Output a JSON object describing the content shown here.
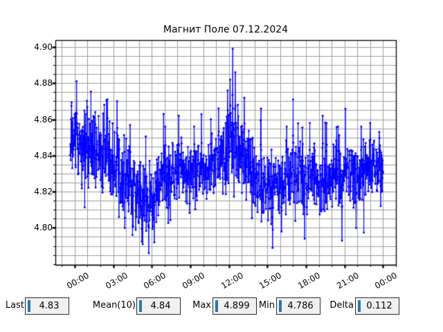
{
  "title": "Магнит Поле 07.12.2024",
  "chart_data": {
    "type": "line",
    "title": "Магнит Поле 07.12.2024",
    "series_name": "magnetic-field",
    "series_color": "#0000ff",
    "marker": "circle",
    "grid": true,
    "grid_color": "#9b9b9b",
    "x_axis": {
      "label": "",
      "tick_labels": [
        "00:00",
        "03:00",
        "06:00",
        "09:00",
        "12:00",
        "15:00",
        "18:00",
        "21:00",
        "00:00"
      ],
      "tick_hours": [
        0,
        3,
        6,
        9,
        12,
        15,
        18,
        21,
        24
      ],
      "minor_step_hours": 1,
      "range_hours": [
        -1.5,
        25.0
      ]
    },
    "y_axis": {
      "label": "",
      "tick_labels": [
        "4.90",
        "4.88",
        "4.86",
        "4.84",
        "4.82",
        "4.80"
      ],
      "tick_values": [
        4.9,
        4.88,
        4.86,
        4.84,
        4.82,
        4.8
      ],
      "minor_step": 0.005,
      "range": [
        4.7795,
        4.9038
      ]
    },
    "stats": {
      "last": 4.83,
      "mean10": 4.84,
      "max": 4.899,
      "min": 4.786,
      "delta": 0.112
    },
    "generator": {
      "seed": 1234,
      "start_hour": -0.35,
      "end_hour": 24.0,
      "step_minutes": 1,
      "last_value": 4.831,
      "tail_chance": 0.07,
      "tail_gain": 2.0,
      "clamp": [
        4.788,
        4.89
      ],
      "baseline": [
        [
          -0.4,
          4.846
        ],
        [
          0,
          4.846
        ],
        [
          1,
          4.842
        ],
        [
          2,
          4.841
        ],
        [
          3,
          4.838
        ],
        [
          4,
          4.827
        ],
        [
          4.5,
          4.822
        ],
        [
          5,
          4.818
        ],
        [
          6,
          4.817
        ],
        [
          6.5,
          4.822
        ],
        [
          7,
          4.827
        ],
        [
          8,
          4.831
        ],
        [
          9,
          4.828
        ],
        [
          10,
          4.83
        ],
        [
          11,
          4.835
        ],
        [
          11.8,
          4.84
        ],
        [
          12.3,
          4.848
        ],
        [
          13,
          4.839
        ],
        [
          14,
          4.83
        ],
        [
          15,
          4.822
        ],
        [
          16,
          4.824
        ],
        [
          17,
          4.831
        ],
        [
          18,
          4.829
        ],
        [
          19,
          4.826
        ],
        [
          20,
          4.827
        ],
        [
          21,
          4.831
        ],
        [
          22,
          4.829
        ],
        [
          23,
          4.833
        ],
        [
          24,
          4.835
        ]
      ],
      "noise_amp": [
        [
          -0.4,
          0.013
        ],
        [
          2,
          0.013
        ],
        [
          4,
          0.012
        ],
        [
          5,
          0.012
        ],
        [
          6,
          0.011
        ],
        [
          7,
          0.011
        ],
        [
          9,
          0.01
        ],
        [
          11,
          0.011
        ],
        [
          12,
          0.013
        ],
        [
          13,
          0.012
        ],
        [
          15,
          0.011
        ],
        [
          17,
          0.011
        ],
        [
          19,
          0.011
        ],
        [
          21,
          0.011
        ],
        [
          23,
          0.01
        ],
        [
          24,
          0.009
        ]
      ],
      "spikes": [
        [
          0.15,
          4.881
        ],
        [
          1.6,
          4.864
        ],
        [
          2.3,
          4.868
        ],
        [
          2.55,
          4.871
        ],
        [
          3.3,
          4.87
        ],
        [
          3.9,
          4.8
        ],
        [
          4.5,
          4.796
        ],
        [
          4.75,
          4.799
        ],
        [
          5.3,
          4.791
        ],
        [
          5.77,
          4.786
        ],
        [
          6.2,
          4.792
        ],
        [
          7.05,
          4.856
        ],
        [
          8.1,
          4.862
        ],
        [
          9.3,
          4.856
        ],
        [
          10.6,
          4.86
        ],
        [
          11.2,
          4.866
        ],
        [
          11.9,
          4.876
        ],
        [
          12.1,
          4.882
        ],
        [
          12.3,
          4.899
        ],
        [
          12.5,
          4.886
        ],
        [
          12.7,
          4.868
        ],
        [
          13.2,
          4.872
        ],
        [
          14.5,
          4.866
        ],
        [
          15.4,
          4.789
        ],
        [
          16.1,
          4.798
        ],
        [
          16.5,
          4.856
        ],
        [
          17.0,
          4.871
        ],
        [
          17.9,
          4.794
        ],
        [
          18.3,
          4.858
        ],
        [
          19.3,
          4.862
        ],
        [
          19.6,
          4.858
        ],
        [
          20.5,
          4.856
        ],
        [
          20.8,
          4.793
        ],
        [
          21.9,
          4.8
        ],
        [
          22.3,
          4.856
        ],
        [
          23.0,
          4.858
        ],
        [
          23.7,
          4.853
        ]
      ]
    }
  },
  "stats_bar": [
    {
      "label": "Last",
      "value": "4.83"
    },
    {
      "label": "Mean(10)",
      "value": "4.84"
    },
    {
      "label": "Max",
      "value": "4.899"
    },
    {
      "label": "Min",
      "value": "4.786"
    },
    {
      "label": "Delta",
      "value": "0.112"
    }
  ]
}
